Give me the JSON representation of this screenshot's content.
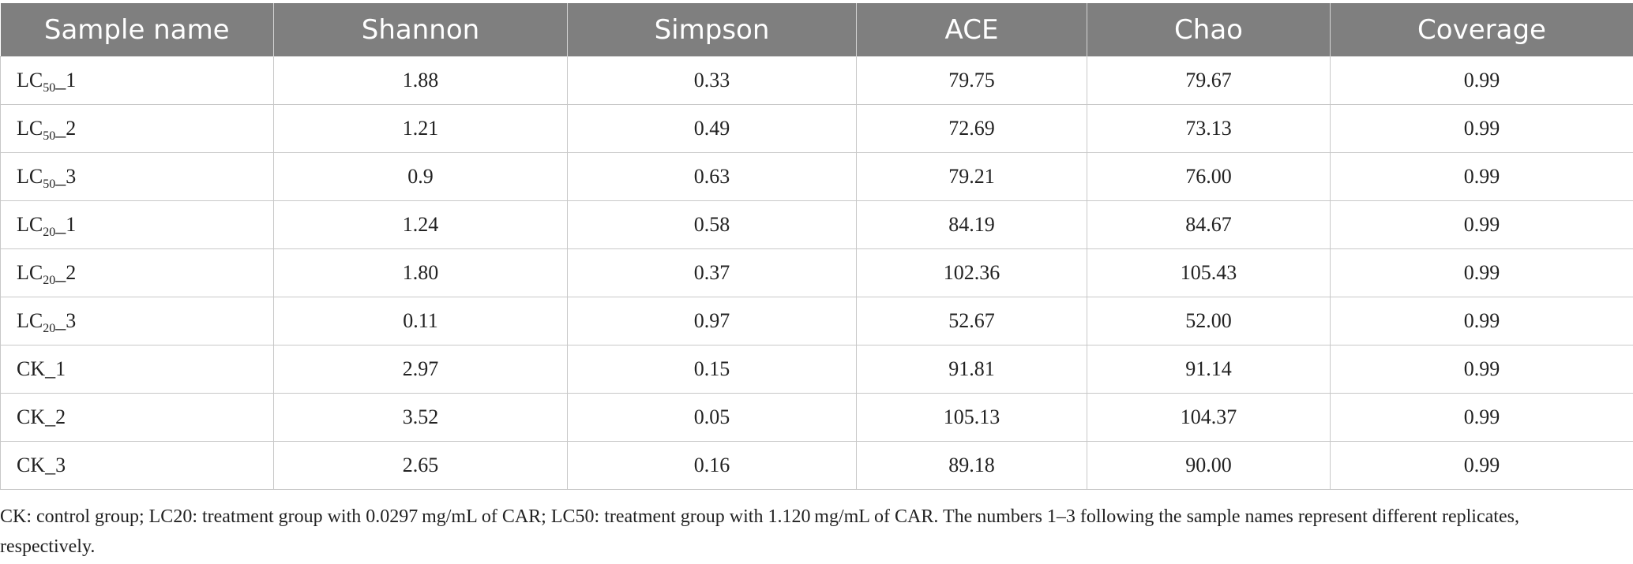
{
  "chart_data": {
    "type": "table",
    "columns": [
      "Sample name",
      "Shannon",
      "Simpson",
      "ACE",
      "Chao",
      "Coverage"
    ],
    "rows": [
      {
        "name_prefix": "LC",
        "name_sub": "50",
        "name_suffix": "_1",
        "Shannon": "1.88",
        "Simpson": "0.33",
        "ACE": "79.75",
        "Chao": "79.67",
        "Coverage": "0.99"
      },
      {
        "name_prefix": "LC",
        "name_sub": "50",
        "name_suffix": "_2",
        "Shannon": "1.21",
        "Simpson": "0.49",
        "ACE": "72.69",
        "Chao": "73.13",
        "Coverage": "0.99"
      },
      {
        "name_prefix": "LC",
        "name_sub": "50",
        "name_suffix": "_3",
        "Shannon": "0.9",
        "Simpson": "0.63",
        "ACE": "79.21",
        "Chao": "76.00",
        "Coverage": "0.99"
      },
      {
        "name_prefix": "LC",
        "name_sub": "20",
        "name_suffix": "_1",
        "Shannon": "1.24",
        "Simpson": "0.58",
        "ACE": "84.19",
        "Chao": "84.67",
        "Coverage": "0.99"
      },
      {
        "name_prefix": "LC",
        "name_sub": "20",
        "name_suffix": "_2",
        "Shannon": "1.80",
        "Simpson": "0.37",
        "ACE": "102.36",
        "Chao": "105.43",
        "Coverage": "0.99"
      },
      {
        "name_prefix": "LC",
        "name_sub": "20",
        "name_suffix": "_3",
        "Shannon": "0.11",
        "Simpson": "0.97",
        "ACE": "52.67",
        "Chao": "52.00",
        "Coverage": "0.99"
      },
      {
        "name_prefix": "CK_1",
        "name_sub": "",
        "name_suffix": "",
        "Shannon": "2.97",
        "Simpson": "0.15",
        "ACE": "91.81",
        "Chao": "91.14",
        "Coverage": "0.99"
      },
      {
        "name_prefix": "CK_2",
        "name_sub": "",
        "name_suffix": "",
        "Shannon": "3.52",
        "Simpson": "0.05",
        "ACE": "105.13",
        "Chao": "104.37",
        "Coverage": "0.99"
      },
      {
        "name_prefix": "CK_3",
        "name_sub": "",
        "name_suffix": "",
        "Shannon": "2.65",
        "Simpson": "0.16",
        "ACE": "89.18",
        "Chao": "90.00",
        "Coverage": "0.99"
      }
    ]
  },
  "footnote": "CK: control group; LC20: treatment group with 0.0297 mg/mL of CAR; LC50: treatment group with 1.120 mg/mL of CAR. The numbers 1–3 following the sample names represent different replicates, respectively."
}
